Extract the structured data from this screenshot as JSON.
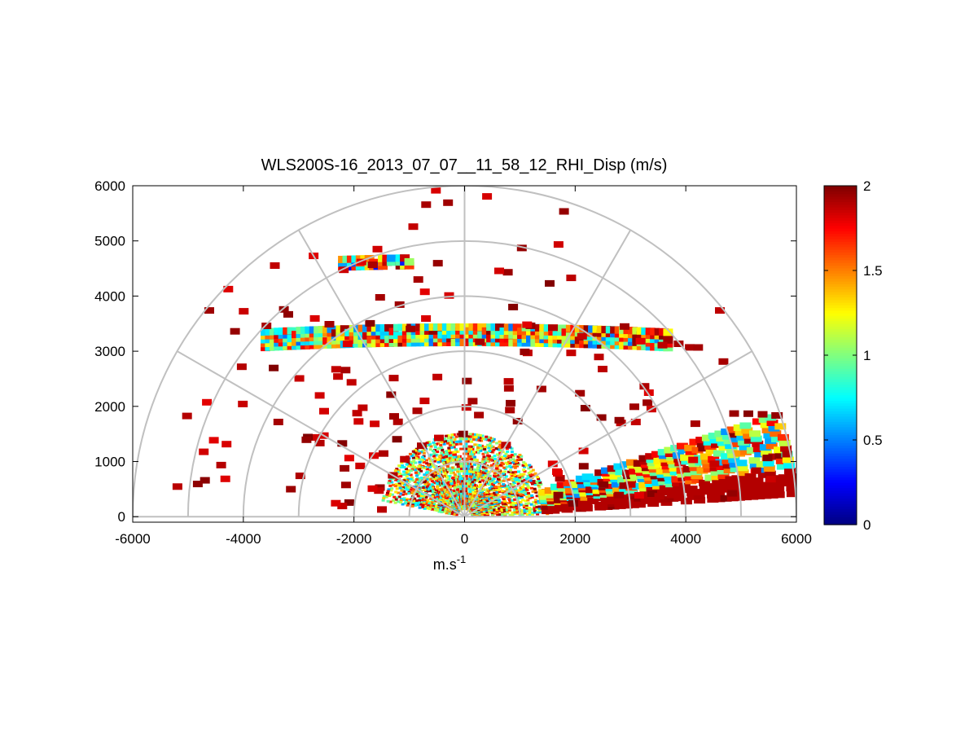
{
  "chart_data": {
    "type": "heatmap",
    "subtype": "polar-rhi-scan",
    "title": "WLS200S-16_2013_07_07__11_58_12_RHI_Disp (m/s)",
    "xlabel": "m.s",
    "xlabel_superscript": "-1",
    "ylabel": "",
    "xlim": [
      -6000,
      6000
    ],
    "ylim": [
      -100,
      6000
    ],
    "x_ticks": [
      -6000,
      -4000,
      -2000,
      0,
      2000,
      4000,
      6000
    ],
    "y_ticks": [
      0,
      1000,
      2000,
      3000,
      4000,
      5000,
      6000
    ],
    "polar_grid": {
      "range_rings": [
        1000,
        2000,
        3000,
        4000,
        5000,
        6000
      ],
      "spokes_deg": [
        0,
        30,
        60,
        90,
        120,
        150,
        180
      ],
      "color": "#c0c0c0"
    },
    "colorbar": {
      "colormap": "jet",
      "min": 0,
      "max": 2,
      "ticks": [
        0,
        0.5,
        1,
        1.5,
        2
      ]
    },
    "layers": [
      {
        "name": "near-field",
        "r_min": 150,
        "r_max": 1500,
        "angle_min": 2,
        "angle_max": 170,
        "value_min": 0.55,
        "value_max": 2.0,
        "density": 0.55
      },
      {
        "name": "boundary-layer",
        "r_min": 1500,
        "r_max": 6000,
        "angle_min": 4,
        "angle_max": 18,
        "value_min": 0.5,
        "value_max": 2.0,
        "density": 0.75
      },
      {
        "name": "cloud-layer-3200m",
        "height_min": 3150,
        "height_max": 3450,
        "x_min": -3600,
        "x_max": 3700,
        "value_min": 0.45,
        "value_max": 2.0,
        "density": 0.9
      },
      {
        "name": "cloud-layer-4700m",
        "height_min": 4550,
        "height_max": 4750,
        "x_min": -2200,
        "x_max": -1000,
        "value_min": 0.2,
        "value_max": 2.0,
        "density": 0.8
      },
      {
        "name": "noise",
        "r_min": 1500,
        "r_max": 6000,
        "angle_min": 5,
        "angle_max": 175,
        "value_min": 1.8,
        "value_max": 2.0,
        "density": 0.02
      }
    ]
  }
}
